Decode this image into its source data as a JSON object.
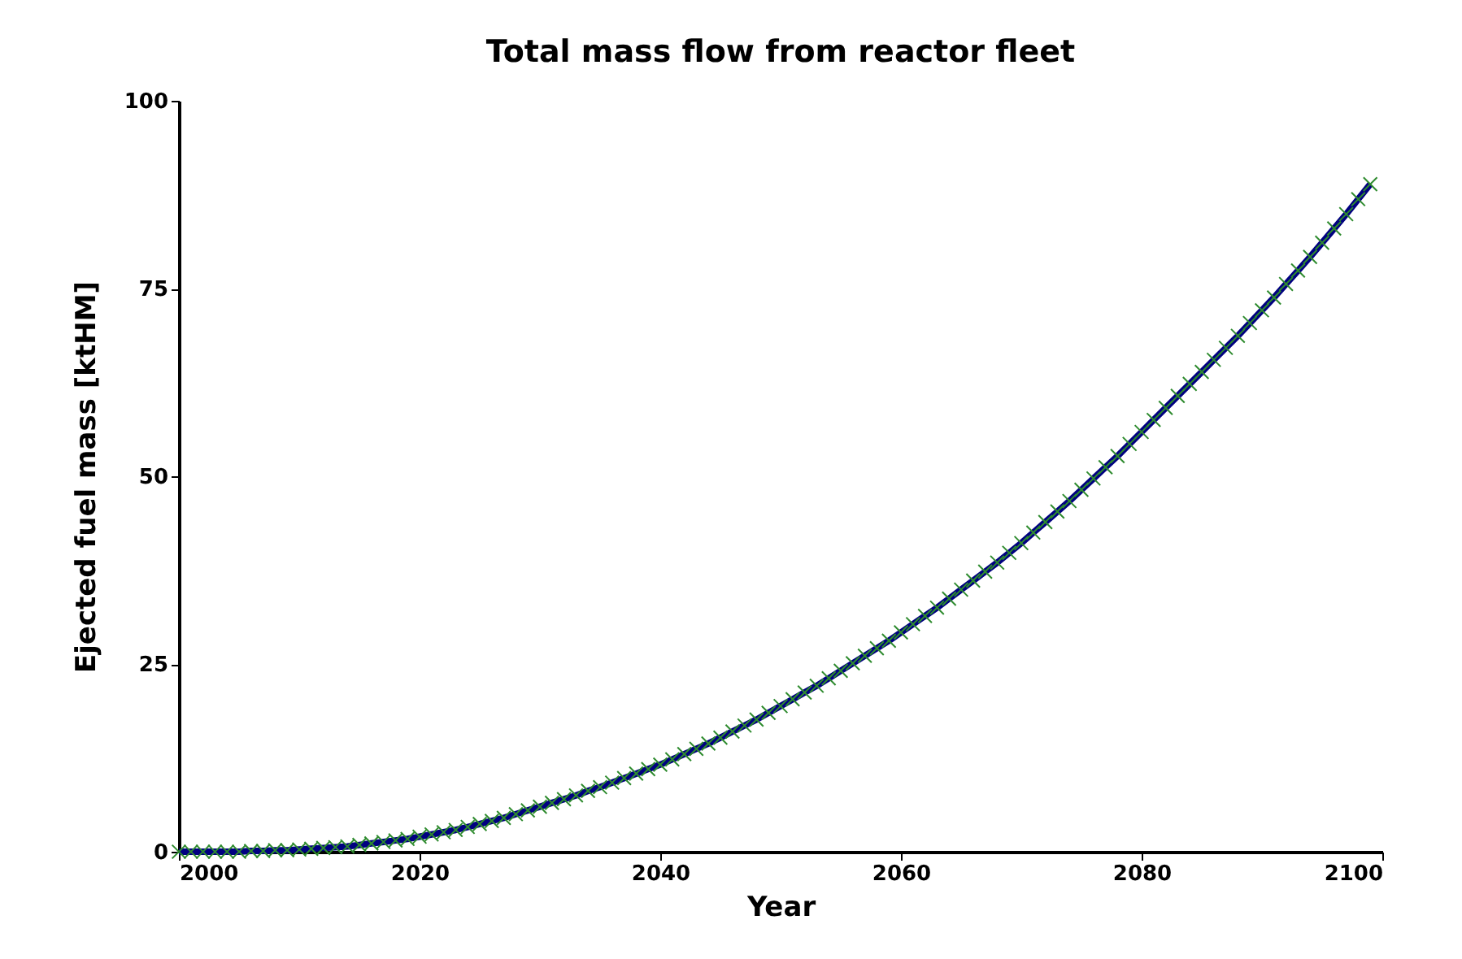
{
  "chart_data": {
    "type": "line",
    "title": "Total mass flow from reactor fleet",
    "xlabel": "Year",
    "ylabel": "Ejected fuel mass [ktHM]",
    "x": [
      2000,
      2001,
      2002,
      2003,
      2004,
      2005,
      2006,
      2007,
      2008,
      2009,
      2010,
      2011,
      2012,
      2013,
      2014,
      2015,
      2016,
      2017,
      2018,
      2019,
      2020,
      2021,
      2022,
      2023,
      2024,
      2025,
      2026,
      2027,
      2028,
      2029,
      2030,
      2031,
      2032,
      2033,
      2034,
      2035,
      2036,
      2037,
      2038,
      2039,
      2040,
      2041,
      2042,
      2043,
      2044,
      2045,
      2046,
      2047,
      2048,
      2049,
      2050,
      2051,
      2052,
      2053,
      2054,
      2055,
      2056,
      2057,
      2058,
      2059,
      2060,
      2061,
      2062,
      2063,
      2064,
      2065,
      2066,
      2067,
      2068,
      2069,
      2070,
      2071,
      2072,
      2073,
      2074,
      2075,
      2076,
      2077,
      2078,
      2079,
      2080,
      2081,
      2082,
      2083,
      2084,
      2085,
      2086,
      2087,
      2088,
      2089,
      2090,
      2091,
      2092,
      2093,
      2094,
      2095,
      2096,
      2097,
      2098,
      2099
    ],
    "series": [
      {
        "type": "line",
        "color": "#000080",
        "values": [
          0,
          0,
          0,
          0,
          0,
          0,
          0.1,
          0.1,
          0.2,
          0.2,
          0.3,
          0.4,
          0.5,
          0.6,
          0.7,
          0.9,
          1.1,
          1.3,
          1.5,
          1.7,
          2.0,
          2.3,
          2.6,
          2.9,
          3.3,
          3.7,
          4.1,
          4.5,
          5.0,
          5.5,
          6.0,
          6.5,
          7.0,
          7.5,
          8.1,
          8.6,
          9.2,
          9.8,
          10.4,
          11.0,
          11.6,
          12.3,
          13.0,
          13.7,
          14.4,
          15.2,
          16.0,
          16.8,
          17.6,
          18.5,
          19.4,
          20.3,
          21.2,
          22.1,
          23.1,
          24.1,
          25.1,
          26.1,
          27.1,
          28.1,
          29.2,
          30.3,
          31.4,
          32.5,
          33.7,
          34.9,
          36.1,
          37.3,
          38.5,
          39.8,
          41.1,
          42.5,
          43.9,
          45.3,
          46.7,
          48.2,
          49.7,
          51.2,
          52.7,
          54.3,
          55.9,
          57.5,
          59.1,
          60.7,
          62.3,
          63.9,
          65.5,
          67.1,
          68.7,
          70.4,
          72.1,
          73.8,
          75.6,
          77.4,
          79.2,
          81.1,
          83.0,
          84.9,
          86.9,
          88.9
        ]
      },
      {
        "type": "scatter",
        "color": "#2e8b2e",
        "marker": "cross",
        "values": [
          0,
          0,
          0,
          0,
          0,
          0,
          0.1,
          0.1,
          0.2,
          0.2,
          0.3,
          0.4,
          0.5,
          0.6,
          0.7,
          0.9,
          1.1,
          1.3,
          1.5,
          1.7,
          2.0,
          2.3,
          2.6,
          2.9,
          3.3,
          3.7,
          4.1,
          4.5,
          5.0,
          5.5,
          6.0,
          6.5,
          7.0,
          7.5,
          8.1,
          8.6,
          9.2,
          9.8,
          10.4,
          11.0,
          11.6,
          12.3,
          13.0,
          13.7,
          14.4,
          15.2,
          16.0,
          16.8,
          17.6,
          18.5,
          19.4,
          20.3,
          21.2,
          22.1,
          23.1,
          24.1,
          25.1,
          26.1,
          27.1,
          28.1,
          29.2,
          30.3,
          31.4,
          32.5,
          33.7,
          34.9,
          36.1,
          37.3,
          38.5,
          39.8,
          41.1,
          42.5,
          43.9,
          45.3,
          46.7,
          48.2,
          49.7,
          51.2,
          52.7,
          54.3,
          55.9,
          57.5,
          59.1,
          60.7,
          62.3,
          63.9,
          65.5,
          67.1,
          68.7,
          70.4,
          72.1,
          73.8,
          75.6,
          77.4,
          79.2,
          81.1,
          83.0,
          84.9,
          86.9,
          88.9
        ]
      }
    ],
    "xlim": [
      2000,
      2100
    ],
    "xticks": [
      2000,
      2020,
      2040,
      2060,
      2080,
      2100
    ],
    "ylim": [
      0,
      100
    ],
    "yticks": [
      0,
      25,
      50,
      75,
      100
    ],
    "grid": false
  }
}
